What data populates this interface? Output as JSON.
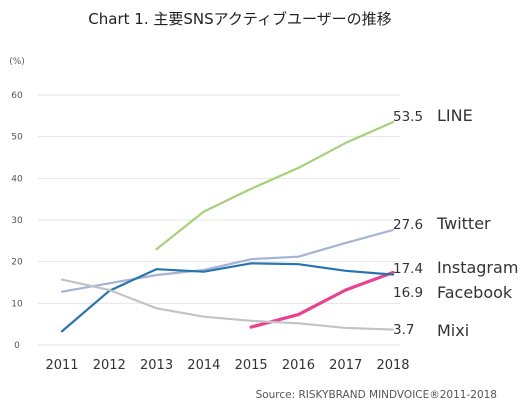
{
  "chart_data": {
    "type": "line",
    "title": "Chart 1. 主要SNSアクティブユーザーの推移",
    "unit_label": "(%)",
    "source": "Source: RISKYBRAND MINDVOICE®2011-2018",
    "x": [
      "2011",
      "2012",
      "2013",
      "2014",
      "2015",
      "2016",
      "2017",
      "2018"
    ],
    "ylim": [
      0,
      60
    ],
    "yticks": [
      "0",
      "10",
      "20",
      "30",
      "40",
      "50",
      "60"
    ],
    "grid": true,
    "series": [
      {
        "name": "LINE",
        "color": "#a9cf7b",
        "values": [
          null,
          null,
          23.0,
          32.0,
          37.5,
          42.5,
          48.5,
          53.5
        ],
        "end_label": "53.5"
      },
      {
        "name": "Twitter",
        "color": "#a6b3d6",
        "values": [
          12.8,
          14.8,
          16.8,
          18.0,
          20.6,
          21.2,
          24.5,
          27.6
        ],
        "end_label": "27.6"
      },
      {
        "name": "Instagram",
        "color": "#e8418f",
        "values": [
          null,
          null,
          null,
          null,
          4.3,
          7.3,
          13.2,
          17.4
        ],
        "end_label": "17.4"
      },
      {
        "name": "Facebook",
        "color": "#2775ad",
        "values": [
          3.3,
          13.0,
          18.2,
          17.6,
          19.6,
          19.4,
          17.8,
          16.9
        ],
        "end_label": "16.9"
      },
      {
        "name": "Mixi",
        "color": "#c3c3c3",
        "values": [
          15.7,
          13.2,
          8.8,
          6.8,
          5.8,
          5.2,
          4.1,
          3.7
        ],
        "end_label": "3.7"
      }
    ]
  }
}
